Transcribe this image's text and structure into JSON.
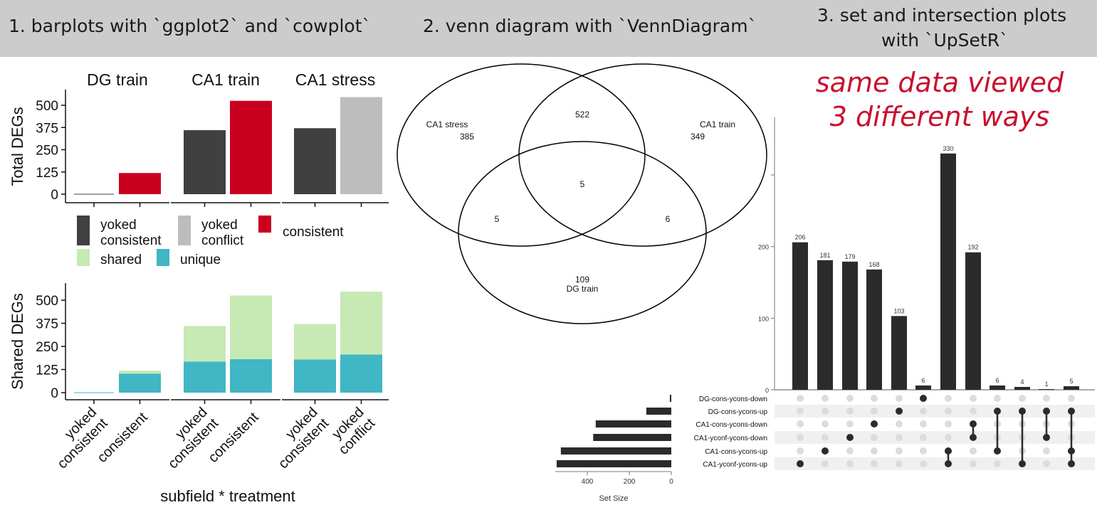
{
  "header": {
    "col1": "1. barplots with `ggplot2` and `cowplot`",
    "col2": "2. venn diagram with `VennDiagram`",
    "col3_line1": "3. set and intersection plots",
    "col3_line2": "with `UpSetR`"
  },
  "tagline": {
    "line1": "same data viewed",
    "line2": "3 different ways"
  },
  "colors": {
    "yoked_consistent": "#404040",
    "yoked_conflict": "#bdbdbd",
    "consistent": "#ca0020",
    "shared": "#c7e9b4",
    "unique": "#41b6c4",
    "upset_bar": "#2b2b2b",
    "dot_off": "#dcdcdc",
    "stripe": "#f0f0f0"
  },
  "chart_data": [
    {
      "type": "bar",
      "panel": "total",
      "facets": [
        "DG train",
        "CA1 train",
        "CA1 stress"
      ],
      "ylabel": "Total DEGs",
      "yticks": [
        0,
        125,
        250,
        375,
        500
      ],
      "ylim": [
        0,
        550
      ],
      "groups": [
        {
          "facet": "DG train",
          "bars": [
            {
              "key": "yoked_consistent",
              "value": 2
            },
            {
              "key": "consistent",
              "value": 119
            }
          ]
        },
        {
          "facet": "CA1 train",
          "bars": [
            {
              "key": "yoked_consistent",
              "value": 360
            },
            {
              "key": "consistent",
              "value": 525
            }
          ]
        },
        {
          "facet": "CA1 stress",
          "bars": [
            {
              "key": "yoked_consistent",
              "value": 371
            },
            {
              "key": "yoked_conflict",
              "value": 546
            }
          ]
        }
      ],
      "legend": [
        {
          "key": "yoked_consistent",
          "line1": "yoked",
          "line2": "consistent"
        },
        {
          "key": "yoked_conflict",
          "line1": "yoked",
          "line2": "conflict"
        },
        {
          "key": "consistent",
          "line1": "consistent",
          "line2": ""
        },
        {
          "key": "shared",
          "line1": "shared",
          "line2": ""
        },
        {
          "key": "unique",
          "line1": "unique",
          "line2": ""
        }
      ]
    },
    {
      "type": "bar",
      "stacked": true,
      "panel": "shared",
      "ylabel": "Shared DEGs",
      "xlabel": "subfield * treatment",
      "yticks": [
        0,
        125,
        250,
        375,
        500
      ],
      "ylim": [
        0,
        550
      ],
      "groups": [
        {
          "facet": "DG train",
          "bars": [
            {
              "label": [
                "yoked",
                "consistent"
              ],
              "unique": 2,
              "shared": 0
            },
            {
              "label": [
                "consistent"
              ],
              "unique": 103,
              "shared": 16
            }
          ]
        },
        {
          "facet": "CA1 train",
          "bars": [
            {
              "label": [
                "yoked",
                "consistent"
              ],
              "unique": 168,
              "shared": 192
            },
            {
              "label": [
                "consistent"
              ],
              "unique": 181,
              "shared": 344
            }
          ]
        },
        {
          "facet": "CA1 stress",
          "bars": [
            {
              "label": [
                "yoked",
                "consistent"
              ],
              "unique": 179,
              "shared": 192
            },
            {
              "label": [
                "yoked",
                "conflict"
              ],
              "unique": 206,
              "shared": 340
            }
          ]
        }
      ]
    },
    {
      "type": "venn",
      "sets": [
        "CA1 stress",
        "CA1 train",
        "DG train"
      ],
      "regions": {
        "CA1 stress": 385,
        "CA1 train": 349,
        "DG train": 109,
        "CA1 stress & CA1 train": 522,
        "CA1 stress & DG train": 5,
        "CA1 train & DG train": 6,
        "all": 5
      }
    },
    {
      "type": "upset",
      "yticks": [
        0,
        100,
        200
      ],
      "ylim": [
        0,
        340
      ],
      "sets": [
        "DG-cons-ycons-down",
        "DG-cons-ycons-up",
        "CA1-cons-ycons-down",
        "CA1-yconf-ycons-down",
        "CA1-cons-ycons-up",
        "CA1-yconf-ycons-up"
      ],
      "set_sizes": [
        7,
        119,
        360,
        372,
        526,
        546
      ],
      "set_size_label": "Set Size",
      "set_size_ticks": [
        400,
        200,
        0
      ],
      "intersections": [
        {
          "size": 206,
          "members": [
            5
          ]
        },
        {
          "size": 181,
          "members": [
            4
          ]
        },
        {
          "size": 179,
          "members": [
            3
          ]
        },
        {
          "size": 168,
          "members": [
            2
          ]
        },
        {
          "size": 103,
          "members": [
            1
          ]
        },
        {
          "size": 6,
          "members": [
            0
          ]
        },
        {
          "size": 330,
          "members": [
            4,
            5
          ]
        },
        {
          "size": 192,
          "members": [
            2,
            3
          ]
        },
        {
          "size": 6,
          "members": [
            1,
            4
          ]
        },
        {
          "size": 4,
          "members": [
            1,
            5
          ]
        },
        {
          "size": 1,
          "members": [
            1,
            3
          ]
        },
        {
          "size": 5,
          "members": [
            1,
            4,
            5
          ]
        }
      ]
    }
  ]
}
